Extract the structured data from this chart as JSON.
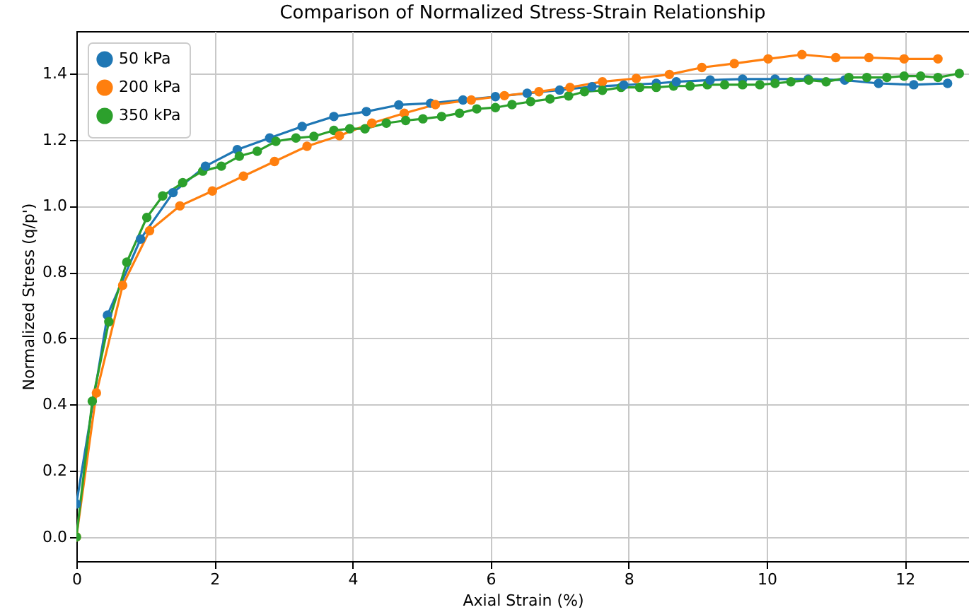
{
  "chart_data": {
    "type": "line",
    "title": "Comparison of Normalized Stress-Strain Relationship",
    "xlabel": "Axial Strain (%)",
    "ylabel": "Normalized Stress (q/p')",
    "xlim": [
      0,
      12.93
    ],
    "xticks": [
      0,
      2,
      4,
      6,
      8,
      10,
      12
    ],
    "ylim": [
      -0.073,
      1.528
    ],
    "yticks": [
      {
        "value": 0,
        "label": "0.0"
      },
      {
        "value": 0.2,
        "label": "0.2"
      },
      {
        "value": 0.4,
        "label": "0.4"
      },
      {
        "value": 0.6,
        "label": "0.6"
      },
      {
        "value": 0.8,
        "label": "0.8"
      },
      {
        "value": 1.0,
        "label": "1.0"
      },
      {
        "value": 1.2,
        "label": "1.2"
      },
      {
        "value": 1.4,
        "label": "1.4"
      }
    ],
    "grid": true,
    "legend": "top left",
    "marker": "circle",
    "line_style": "solid",
    "series": [
      {
        "name": "50 kPa",
        "color": "#1f77b4",
        "x": [
          0,
          0.45,
          0.93,
          1.4,
          1.87,
          2.33,
          2.8,
          3.27,
          3.73,
          4.2,
          4.67,
          5.13,
          5.6,
          6.07,
          6.53,
          7,
          7.47,
          7.93,
          8.4,
          8.69,
          9.18,
          9.65,
          10.12,
          10.6,
          11.13,
          11.62,
          12.13,
          12.62
        ],
        "values": [
          0.1,
          0.67,
          0.9,
          1.04,
          1.12,
          1.17,
          1.205,
          1.24,
          1.27,
          1.285,
          1.305,
          1.31,
          1.32,
          1.33,
          1.34,
          1.35,
          1.36,
          1.365,
          1.37,
          1.375,
          1.38,
          1.383,
          1.383,
          1.383,
          1.38,
          1.37,
          1.366,
          1.37
        ]
      },
      {
        "name": "200 kPa",
        "color": "#ff7f0e",
        "x": [
          0,
          0.29,
          0.67,
          1.06,
          1.5,
          1.97,
          2.42,
          2.87,
          3.34,
          3.81,
          4.28,
          4.75,
          5.2,
          5.72,
          6.2,
          6.7,
          7.15,
          7.62,
          8.11,
          8.59,
          9.06,
          9.53,
          10.02,
          10.51,
          11.0,
          11.48,
          11.99,
          12.48
        ],
        "values": [
          0,
          0.435,
          0.76,
          0.925,
          1.0,
          1.045,
          1.09,
          1.134,
          1.18,
          1.212,
          1.25,
          1.28,
          1.306,
          1.32,
          1.333,
          1.345,
          1.358,
          1.375,
          1.385,
          1.397,
          1.418,
          1.43,
          1.444,
          1.457,
          1.448,
          1.448,
          1.444,
          1.444
        ]
      },
      {
        "name": "350 kPa",
        "color": "#2ca02c",
        "x": [
          0,
          0.23,
          0.47,
          0.73,
          1.02,
          1.25,
          1.54,
          1.83,
          2.1,
          2.36,
          2.62,
          2.89,
          3.18,
          3.44,
          3.73,
          3.96,
          4.18,
          4.49,
          4.77,
          5.02,
          5.29,
          5.55,
          5.8,
          6.07,
          6.31,
          6.58,
          6.86,
          7.13,
          7.36,
          7.62,
          7.89,
          8.16,
          8.4,
          8.65,
          8.89,
          9.14,
          9.39,
          9.65,
          9.9,
          10.12,
          10.35,
          10.61,
          10.86,
          11.19,
          11.45,
          11.74,
          11.99,
          12.23,
          12.48,
          12.79
        ],
        "values": [
          0,
          0.41,
          0.65,
          0.83,
          0.965,
          1.03,
          1.07,
          1.105,
          1.12,
          1.15,
          1.165,
          1.195,
          1.205,
          1.21,
          1.228,
          1.233,
          1.233,
          1.25,
          1.258,
          1.263,
          1.27,
          1.28,
          1.293,
          1.297,
          1.306,
          1.315,
          1.323,
          1.332,
          1.345,
          1.349,
          1.358,
          1.358,
          1.358,
          1.362,
          1.362,
          1.366,
          1.366,
          1.366,
          1.366,
          1.37,
          1.375,
          1.38,
          1.375,
          1.388,
          1.388,
          1.388,
          1.392,
          1.392,
          1.388,
          1.4
        ]
      }
    ]
  }
}
